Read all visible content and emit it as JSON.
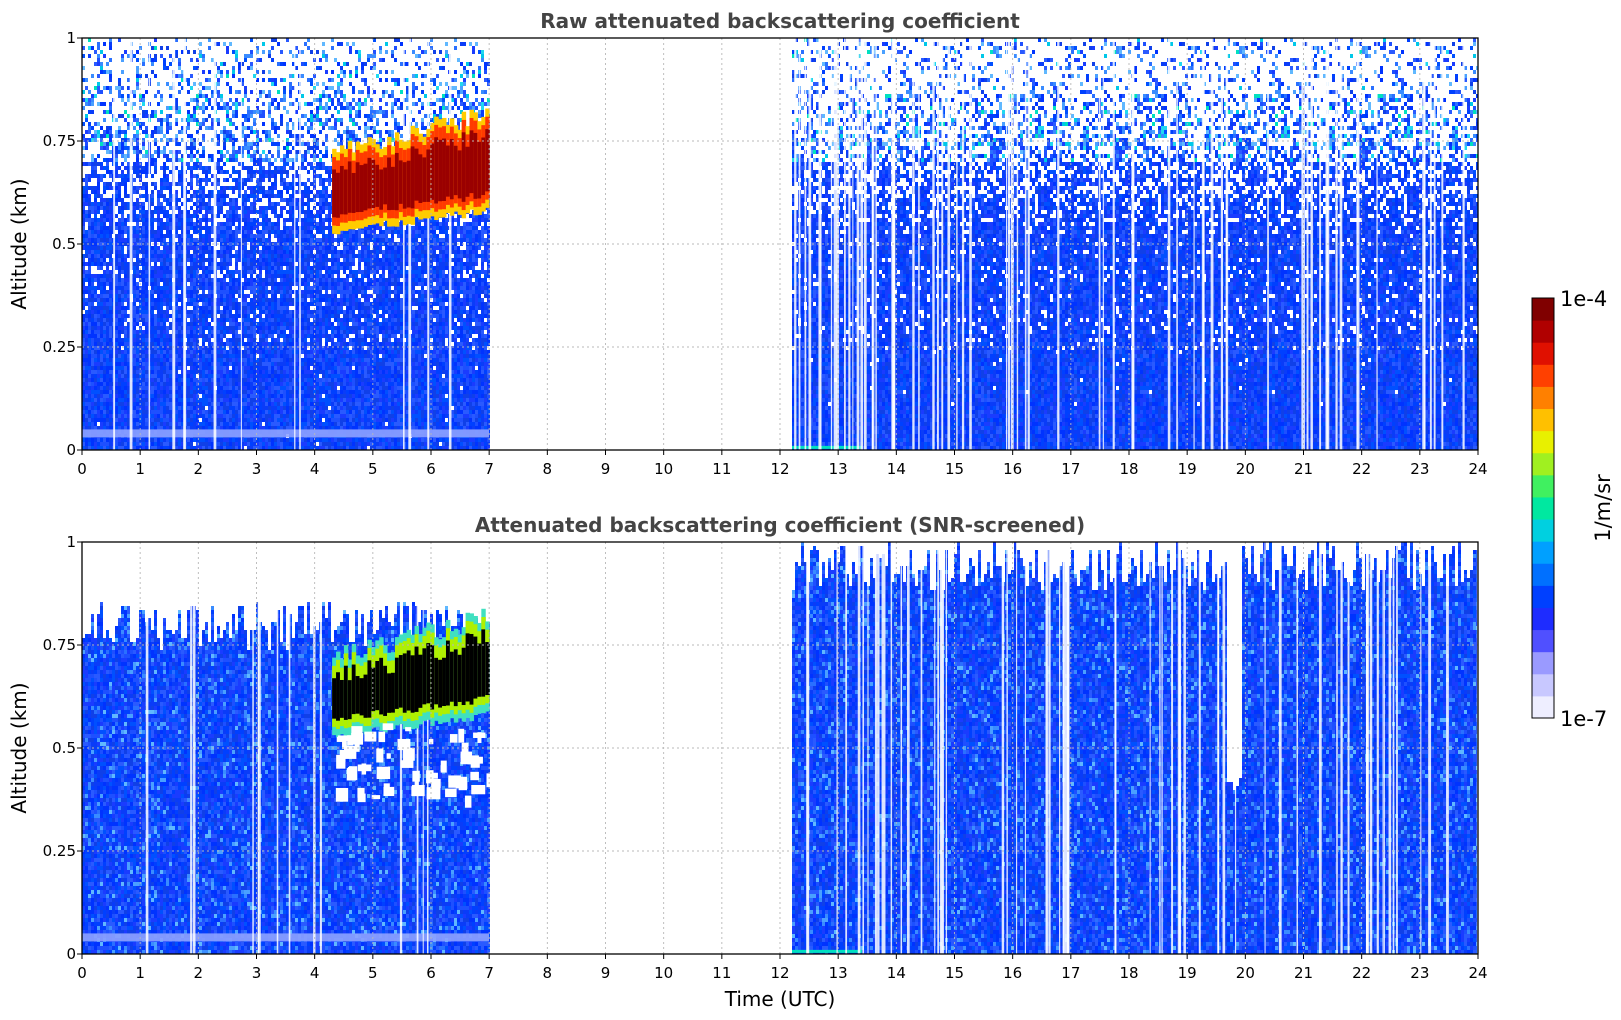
{
  "chart_data": [
    {
      "type": "heatmap",
      "title": "Raw attenuated backscattering coefficient",
      "xlabel": "",
      "ylabel": "Altitude (km)",
      "xlim": [
        0,
        24
      ],
      "ylim": [
        0,
        1
      ],
      "x_ticks": [
        "0",
        "1",
        "2",
        "3",
        "4",
        "5",
        "6",
        "7",
        "8",
        "9",
        "10",
        "11",
        "12",
        "13",
        "14",
        "15",
        "16",
        "17",
        "18",
        "19",
        "20",
        "21",
        "22",
        "23",
        "24"
      ],
      "y_ticks": [
        "0",
        "0.25",
        "0.5",
        "0.75",
        "1"
      ],
      "grid": true,
      "data_segments": [
        {
          "x_start": 0.0,
          "x_end": 7.0
        },
        {
          "x_start": 12.2,
          "x_end": 24.0
        }
      ],
      "features": {
        "aerosol_layer": {
          "x_start": 4.3,
          "x_end": 7.0,
          "bottom_start": 0.55,
          "bottom_end": 0.6,
          "top_start": 0.68,
          "top_end": 0.78
        },
        "noise_above_km": 0.55,
        "surface_band_km": 0.04
      }
    },
    {
      "type": "heatmap",
      "title": "Attenuated backscattering coefficient (SNR-screened)",
      "xlabel": "Time (UTC)",
      "ylabel": "Altitude (km)",
      "xlim": [
        0,
        24
      ],
      "ylim": [
        0,
        1
      ],
      "x_ticks": [
        "0",
        "1",
        "2",
        "3",
        "4",
        "5",
        "6",
        "7",
        "8",
        "9",
        "10",
        "11",
        "12",
        "13",
        "14",
        "15",
        "16",
        "17",
        "18",
        "19",
        "20",
        "21",
        "22",
        "23",
        "24"
      ],
      "y_ticks": [
        "0",
        "0.25",
        "0.5",
        "0.75",
        "1"
      ],
      "grid": true,
      "data_segments": [
        {
          "x_start": 0.0,
          "x_end": 7.0
        },
        {
          "x_start": 12.2,
          "x_end": 24.0
        }
      ],
      "features": {
        "aerosol_layer": {
          "x_start": 4.3,
          "x_end": 7.0,
          "bottom_start": 0.55,
          "bottom_end": 0.6,
          "top_start": 0.68,
          "top_end": 0.78
        },
        "screened_top_km_segment1": 0.8,
        "screened_top_km_segment2": 0.95,
        "dip_at_hour": 19.8,
        "dip_bottom_km": 0.4
      }
    }
  ],
  "colorbar": {
    "label": "1/m/sr",
    "max_label": "1e-4",
    "min_label": "1e-7",
    "colors": [
      "#eeeeff",
      "#c8c8ff",
      "#9a9aff",
      "#5050ff",
      "#1e2cff",
      "#0040ff",
      "#0070ff",
      "#00a0ff",
      "#00d0e0",
      "#00e8a0",
      "#40f060",
      "#a0f020",
      "#e8f000",
      "#ffc000",
      "#ff8000",
      "#ff4000",
      "#e01000",
      "#b00000",
      "#800000"
    ]
  }
}
